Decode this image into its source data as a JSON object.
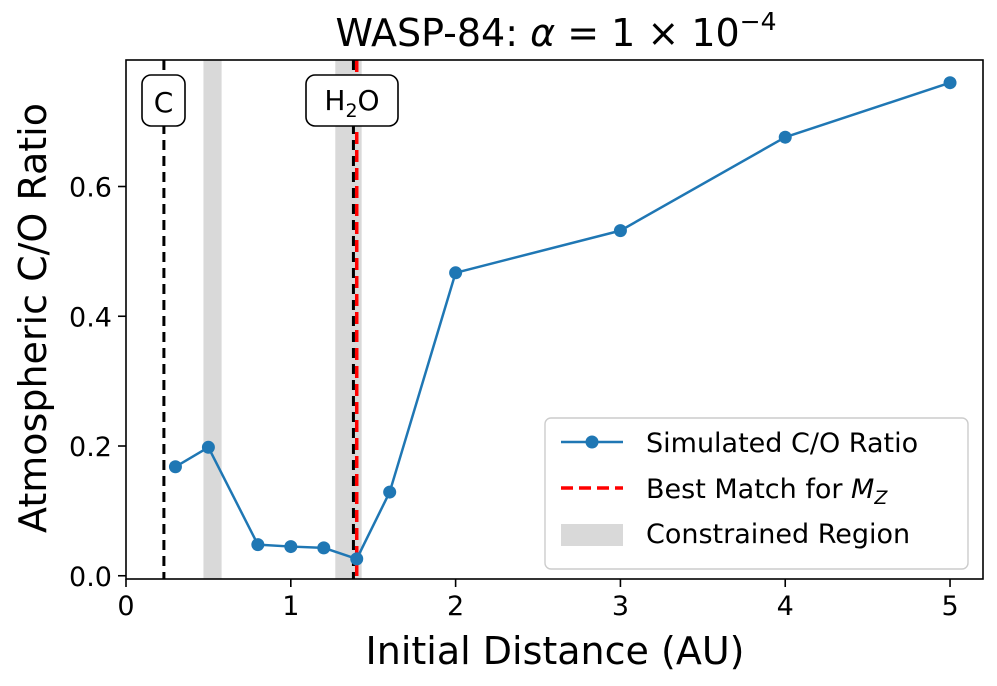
{
  "chart_data": {
    "type": "line",
    "title_prefix": "WASP-84: ",
    "title_math": {
      "symbol": "α",
      "eq": " = 1 × 10",
      "exp": "−4"
    },
    "xlabel": "Initial Distance (AU)",
    "ylabel": "Atmospheric C/O Ratio",
    "xlim": [
      0,
      5.2
    ],
    "ylim": [
      -0.005,
      0.795
    ],
    "xticks": [
      0,
      1,
      2,
      3,
      4,
      5
    ],
    "yticks": [
      0.0,
      0.2,
      0.4,
      0.6
    ],
    "xtick_labels": [
      "0",
      "1",
      "2",
      "3",
      "4",
      "5"
    ],
    "ytick_labels": [
      "0.0",
      "0.2",
      "0.4",
      "0.6"
    ],
    "grid": false,
    "legend_position": "lower-right",
    "series": [
      {
        "name": "Simulated C/O Ratio",
        "color": "#1f77b4",
        "x": [
          0.3,
          0.5,
          0.8,
          1.0,
          1.2,
          1.4,
          1.6,
          2.0,
          3.0,
          4.0,
          5.0
        ],
        "y": [
          0.168,
          0.198,
          0.048,
          0.045,
          0.043,
          0.026,
          0.129,
          0.467,
          0.532,
          0.676,
          0.76
        ]
      }
    ],
    "best_match": {
      "name": "Best Match for ",
      "math": "M",
      "sub": "Z",
      "x": 1.4,
      "color": "#ff0000"
    },
    "constrained_region": {
      "name": "Constrained Region",
      "color": "#d9d9d9",
      "bands": [
        [
          0.47,
          0.58
        ],
        [
          1.27,
          1.43
        ]
      ]
    },
    "ice_lines": [
      {
        "label": "C",
        "x": 0.23
      },
      {
        "label_main": "H",
        "label_sub": "2",
        "label_end": "O",
        "x": 1.38
      }
    ]
  }
}
